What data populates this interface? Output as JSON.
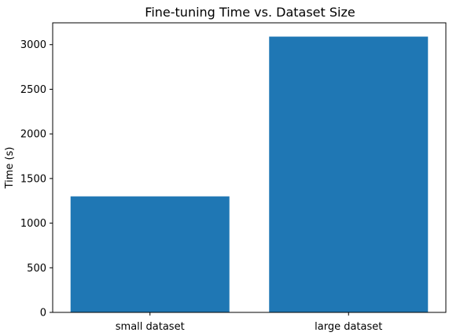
{
  "chart_data": {
    "type": "bar",
    "title": "Fine-tuning Time vs. Dataset Size",
    "xlabel": "",
    "ylabel": "Time (s)",
    "categories": [
      "small dataset",
      "large dataset"
    ],
    "values": [
      1300,
      3090
    ],
    "ylim": [
      0,
      3244.5
    ],
    "yticks": [
      0,
      500,
      1000,
      1500,
      2000,
      2500,
      3000
    ],
    "ytick_labels": [
      "0",
      "500",
      "1000",
      "1500",
      "2000",
      "2500",
      "3000"
    ],
    "bar_color": "#1f77b4",
    "grid": false,
    "legend": "none"
  }
}
